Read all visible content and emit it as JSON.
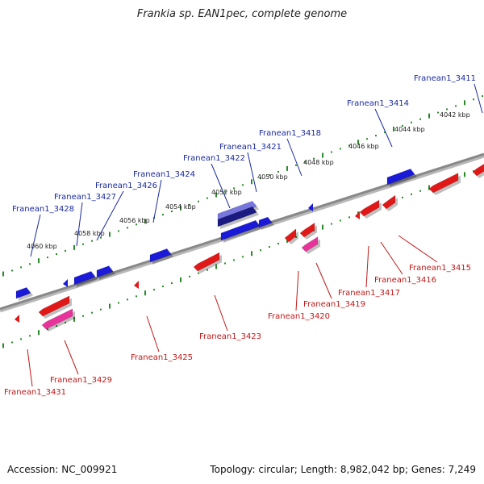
{
  "title": "Frankia sp. EAN1pec, complete genome",
  "footer": {
    "accession": "Accession: NC_009921",
    "topology": "Topology: circular; Length: 8,982,042 bp; Genes: 7,249"
  },
  "colors": {
    "forward": "#1a1ad8",
    "reverse": "#e01818",
    "rna": "#e8349a",
    "selected": "#7777dd",
    "backbone": "#888888",
    "ticks": "#2a8a2a",
    "forward_label": "#1a2aa0",
    "reverse_label": "#c01818"
  },
  "tick_labels": [
    "4042 kbp",
    "4044 kbp",
    "4046 kbp",
    "4048 kbp",
    "4050 kbp",
    "4052 kbp",
    "4054 kbp",
    "4056 kbp",
    "4058 kbp",
    "4060 kbp"
  ],
  "forward_labels": [
    "Franean1_3411",
    "Franean1_3414",
    "Franean1_3418",
    "Franean1_3421",
    "Franean1_3422",
    "Franean1_3424",
    "Franean1_3426",
    "Franean1_3427",
    "Franean1_3428"
  ],
  "reverse_labels": [
    "Franean1_3415",
    "Franean1_3416",
    "Franean1_3417",
    "Franean1_3419",
    "Franean1_3420",
    "Franean1_3423",
    "Franean1_3425",
    "Franean1_3429",
    "Franean1_3431"
  ]
}
